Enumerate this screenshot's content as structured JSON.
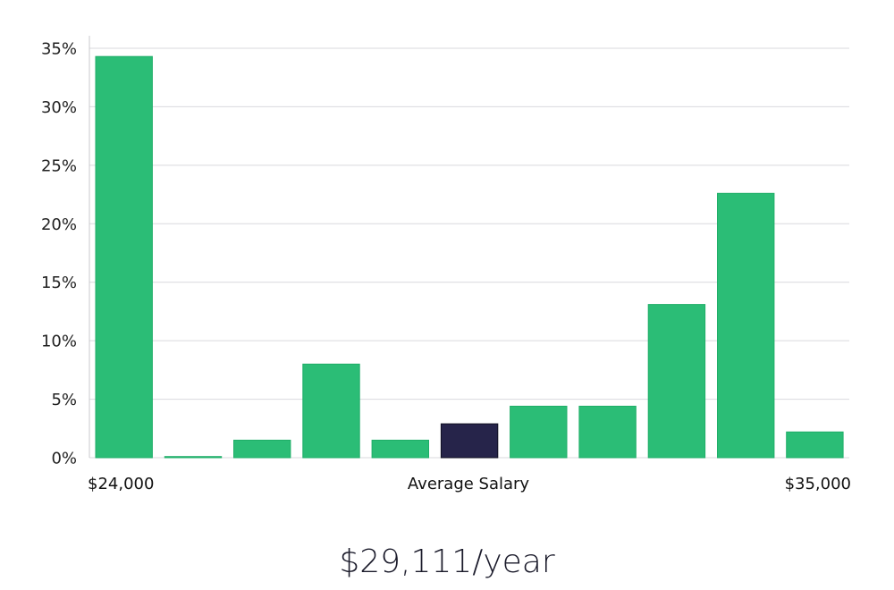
{
  "chart_data": {
    "type": "bar",
    "title": "",
    "xlabel": "Average Salary",
    "ylabel": "",
    "x_start_label": "$24,000",
    "x_end_label": "$35,000",
    "ylim": [
      0,
      35
    ],
    "yticks": [
      0,
      5,
      10,
      15,
      20,
      25,
      30,
      35
    ],
    "ytick_labels": [
      "0%",
      "5%",
      "10%",
      "15%",
      "20%",
      "25%",
      "30%",
      "35%"
    ],
    "values": [
      34.3,
      0.1,
      1.5,
      8.0,
      1.5,
      2.9,
      4.4,
      4.4,
      13.1,
      22.6,
      2.2
    ],
    "highlight_index": 5,
    "colors": {
      "bar": "#2bbd76",
      "bar_stroke": "#1fae68",
      "highlight": "#26244a",
      "highlight_stroke": "#111122",
      "grid": "#d9d9de"
    }
  },
  "summary": {
    "salary_text": "$29,111/year"
  }
}
